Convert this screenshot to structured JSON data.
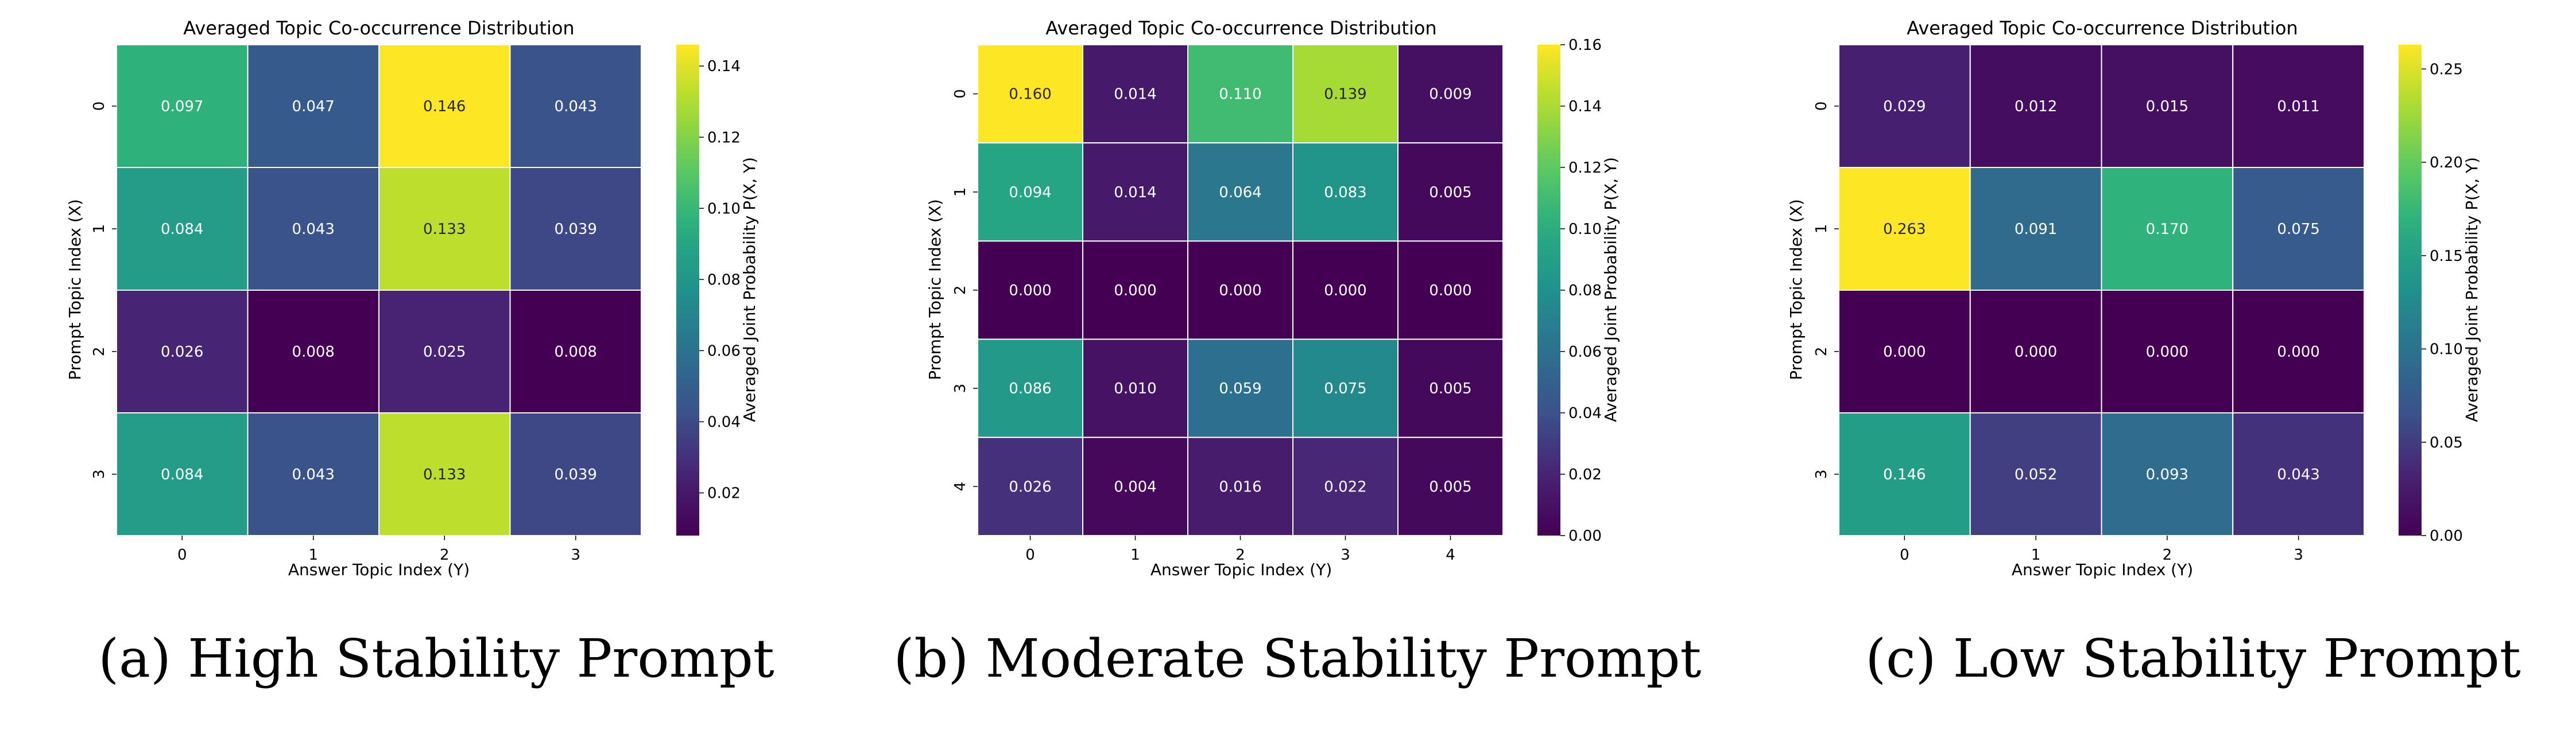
{
  "chart_data": [
    {
      "type": "heatmap",
      "title": "Averaged Topic Co-occurrence Distribution",
      "xlabel": "Answer Topic Index (Y)",
      "ylabel": "Prompt Topic Index (X)",
      "colorbar_label": "Averaged Joint Probability P(X, Y)",
      "x_categories": [
        "0",
        "1",
        "2",
        "3"
      ],
      "y_categories": [
        "0",
        "1",
        "2",
        "3"
      ],
      "values": [
        [
          0.097,
          0.047,
          0.146,
          0.043
        ],
        [
          0.084,
          0.043,
          0.133,
          0.039
        ],
        [
          0.026,
          0.008,
          0.025,
          0.008
        ],
        [
          0.084,
          0.043,
          0.133,
          0.039
        ]
      ],
      "vmin": 0.008,
      "vmax": 0.146,
      "colorbar_ticks": [
        0.02,
        0.04,
        0.06,
        0.08,
        0.1,
        0.12,
        0.14
      ],
      "colorbar_tick_labels": [
        "0.02",
        "0.04",
        "0.06",
        "0.08",
        "0.10",
        "0.12",
        "0.14"
      ],
      "colormap": "viridis",
      "caption": "(a) High Stability Prompt"
    },
    {
      "type": "heatmap",
      "title": "Averaged Topic Co-occurrence Distribution",
      "xlabel": "Answer Topic Index (Y)",
      "ylabel": "Prompt Topic Index (X)",
      "colorbar_label": "Averaged Joint Probability P(X, Y)",
      "x_categories": [
        "0",
        "1",
        "2",
        "3",
        "4"
      ],
      "y_categories": [
        "0",
        "1",
        "2",
        "3",
        "4"
      ],
      "values": [
        [
          0.16,
          0.014,
          0.11,
          0.139,
          0.009
        ],
        [
          0.094,
          0.014,
          0.064,
          0.083,
          0.005
        ],
        [
          0.0,
          0.0,
          0.0,
          0.0,
          0.0
        ],
        [
          0.086,
          0.01,
          0.059,
          0.075,
          0.005
        ],
        [
          0.026,
          0.004,
          0.016,
          0.022,
          0.005
        ]
      ],
      "vmin": 0.0,
      "vmax": 0.16,
      "colorbar_ticks": [
        0.0,
        0.02,
        0.04,
        0.06,
        0.08,
        0.1,
        0.12,
        0.14,
        0.16
      ],
      "colorbar_tick_labels": [
        "0.00",
        "0.02",
        "0.04",
        "0.06",
        "0.08",
        "0.10",
        "0.12",
        "0.14",
        "0.16"
      ],
      "colormap": "viridis",
      "caption": "(b) Moderate Stability Prompt"
    },
    {
      "type": "heatmap",
      "title": "Averaged Topic Co-occurrence Distribution",
      "xlabel": "Answer Topic Index (Y)",
      "ylabel": "Prompt Topic Index (X)",
      "colorbar_label": "Averaged Joint Probability P(X, Y)",
      "x_categories": [
        "0",
        "1",
        "2",
        "3"
      ],
      "y_categories": [
        "0",
        "1",
        "2",
        "3"
      ],
      "values": [
        [
          0.029,
          0.012,
          0.015,
          0.011
        ],
        [
          0.263,
          0.091,
          0.17,
          0.075
        ],
        [
          0.0,
          0.0,
          0.0,
          0.0
        ],
        [
          0.146,
          0.052,
          0.093,
          0.043
        ]
      ],
      "vmin": 0.0,
      "vmax": 0.263,
      "colorbar_ticks": [
        0.0,
        0.05,
        0.1,
        0.15,
        0.2,
        0.25
      ],
      "colorbar_tick_labels": [
        "0.00",
        "0.05",
        "0.10",
        "0.15",
        "0.20",
        "0.25"
      ],
      "colormap": "viridis",
      "caption": "(c) Low Stability Prompt"
    }
  ]
}
